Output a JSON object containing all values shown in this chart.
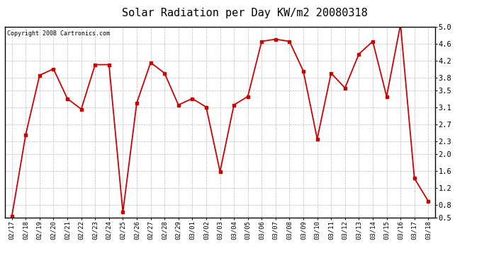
{
  "title": "Solar Radiation per Day KW/m2 20080318",
  "copyright": "Copyright 2008 Cartronics.com",
  "dates": [
    "02/17",
    "02/18",
    "02/19",
    "02/20",
    "02/21",
    "02/22",
    "02/23",
    "02/24",
    "02/25",
    "02/26",
    "02/27",
    "02/28",
    "02/29",
    "03/01",
    "03/02",
    "03/03",
    "03/04",
    "03/05",
    "03/06",
    "03/07",
    "03/08",
    "03/09",
    "03/10",
    "03/11",
    "03/12",
    "03/13",
    "03/14",
    "03/15",
    "03/16",
    "03/17",
    "03/18"
  ],
  "values": [
    0.52,
    2.45,
    3.85,
    4.0,
    3.3,
    3.05,
    4.1,
    4.1,
    0.62,
    3.2,
    4.15,
    3.9,
    3.15,
    3.3,
    3.1,
    1.58,
    3.15,
    3.35,
    4.65,
    4.7,
    4.65,
    3.95,
    2.35,
    3.9,
    3.55,
    4.35,
    4.65,
    3.35,
    5.05,
    1.42,
    0.88
  ],
  "line_color": "#cc0000",
  "marker": "s",
  "marker_size": 2.5,
  "line_width": 1.3,
  "background_color": "#ffffff",
  "grid_color": "#bbbbbb",
  "ylim": [
    0.5,
    5.0
  ],
  "yticks": [
    0.5,
    0.8,
    1.2,
    1.6,
    2.0,
    2.3,
    2.7,
    3.1,
    3.5,
    3.8,
    4.2,
    4.6,
    5.0
  ],
  "title_fontsize": 11,
  "copyright_fontsize": 6,
  "tick_fontsize": 6.5
}
